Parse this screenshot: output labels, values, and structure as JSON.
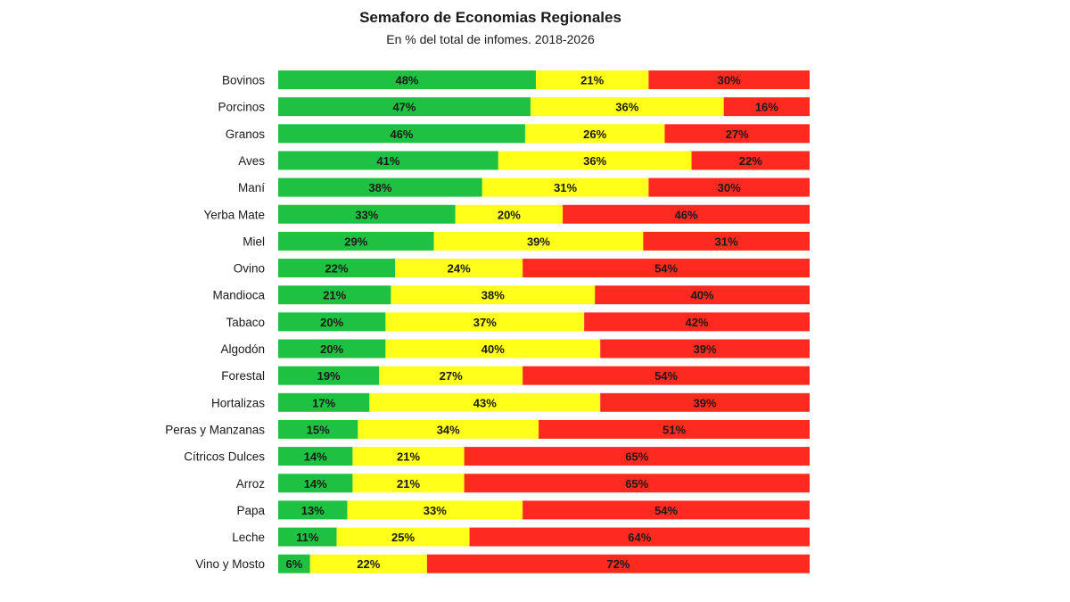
{
  "chart_data": {
    "type": "bar",
    "orientation": "horizontal",
    "stacked": true,
    "title": "Semaforo de Economias Regionales",
    "subtitle": "En % del total de infomes. 2018-2026",
    "grid": false,
    "legend": "none",
    "categories": [
      "Bovinos",
      "Porcinos",
      "Granos",
      "Aves",
      "Maní",
      "Yerba Mate",
      "Miel",
      "Ovino",
      "Mandioca",
      "Tabaco",
      "Algodón",
      "Forestal",
      "Hortalizas",
      "Peras y Manzanas",
      "Cítricos Dulces",
      "Arroz",
      "Papa",
      "Leche",
      "Vino y Mosto"
    ],
    "series": [
      {
        "color": "#1ec141",
        "values": [
          48,
          47,
          46,
          41,
          38,
          33,
          29,
          22,
          21,
          20,
          20,
          19,
          17,
          15,
          14,
          14,
          13,
          11,
          6
        ]
      },
      {
        "color": "#ffff1a",
        "values": [
          21,
          36,
          26,
          36,
          31,
          20,
          39,
          24,
          38,
          37,
          40,
          27,
          43,
          34,
          21,
          21,
          33,
          25,
          22
        ]
      },
      {
        "color": "#ff2a1f",
        "values": [
          30,
          16,
          27,
          22,
          30,
          46,
          31,
          54,
          40,
          42,
          39,
          54,
          39,
          51,
          65,
          65,
          54,
          64,
          72
        ]
      }
    ]
  }
}
